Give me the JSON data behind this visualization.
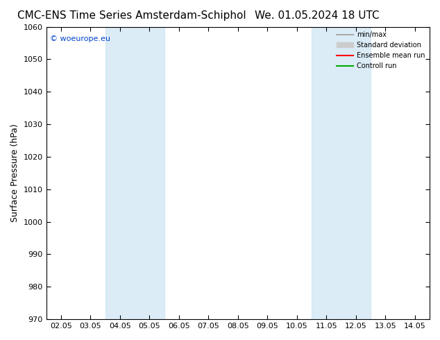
{
  "title_left": "CMC-ENS Time Series Amsterdam-Schiphol",
  "title_right": "We. 01.05.2024 18 UTC",
  "ylabel": "Surface Pressure (hPa)",
  "ylim": [
    970,
    1060
  ],
  "yticks": [
    970,
    980,
    990,
    1000,
    1010,
    1020,
    1030,
    1040,
    1050,
    1060
  ],
  "x_tick_labels": [
    "02.05",
    "03.05",
    "04.05",
    "05.05",
    "06.05",
    "07.05",
    "08.05",
    "09.05",
    "10.05",
    "11.05",
    "12.05",
    "13.05",
    "14.05"
  ],
  "x_tick_positions": [
    0,
    1,
    2,
    3,
    4,
    5,
    6,
    7,
    8,
    9,
    10,
    11,
    12
  ],
  "shaded_bands": [
    {
      "xmin": 2,
      "xmax": 4,
      "color": "#cce5f5",
      "alpha": 0.7
    },
    {
      "xmin": 9,
      "xmax": 11,
      "color": "#cce5f5",
      "alpha": 0.7
    }
  ],
  "background_color": "#ffffff",
  "plot_bg_color": "#ffffff",
  "watermark": "© woeurope.eu",
  "legend_entries": [
    {
      "label": "min/max",
      "color": "#aaaaaa",
      "linewidth": 1.5,
      "linestyle": "-"
    },
    {
      "label": "Standard deviation",
      "color": "#cccccc",
      "linewidth": 6,
      "linestyle": "-"
    },
    {
      "label": "Ensemble mean run",
      "color": "#ff0000",
      "linewidth": 1.5,
      "linestyle": "-"
    },
    {
      "label": "Controll run",
      "color": "#00aa00",
      "linewidth": 1.5,
      "linestyle": "-"
    }
  ],
  "title_fontsize": 11,
  "tick_label_fontsize": 8,
  "ylabel_fontsize": 9
}
